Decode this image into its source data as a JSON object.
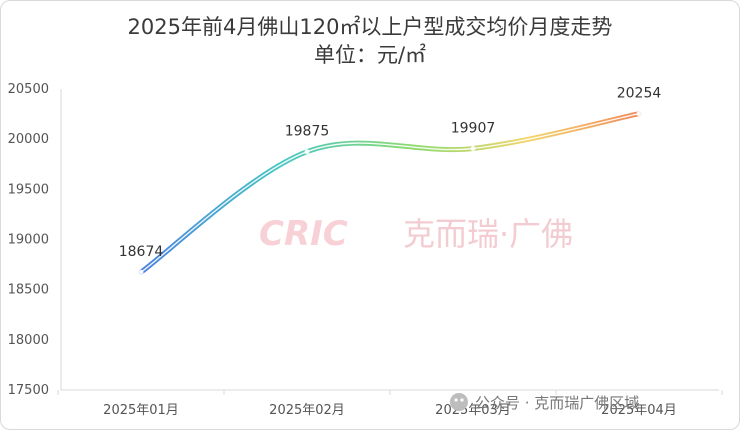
{
  "chart_data": {
    "type": "line",
    "title": "2025年前4月佛山120㎡以上户型成交均价月度走势",
    "subtitle": "单位：元/㎡",
    "categories": [
      "2025年01月",
      "2025年02月",
      "2025年03月",
      "2025年04月"
    ],
    "values": [
      18674,
      19875,
      19907,
      20254
    ],
    "data_labels": [
      "18674",
      "19875",
      "19907",
      "20254"
    ],
    "ylim": [
      17500,
      20500
    ],
    "yticks": [
      17500,
      18000,
      18500,
      19000,
      19500,
      20000,
      20500
    ],
    "ytick_labels": [
      "17500",
      "18000",
      "18500",
      "19000",
      "19500",
      "20000",
      "20500"
    ],
    "smooth": true,
    "grid": false,
    "line_gradient": [
      "#4a7fe0",
      "#47c6c2",
      "#8edb6e",
      "#f3d46a",
      "#f08a5d"
    ]
  },
  "watermark": {
    "logo": "CRIC",
    "text": "克而瑞·广佛"
  },
  "footer": {
    "text": "公众号 · 克而瑞广佛区域"
  }
}
